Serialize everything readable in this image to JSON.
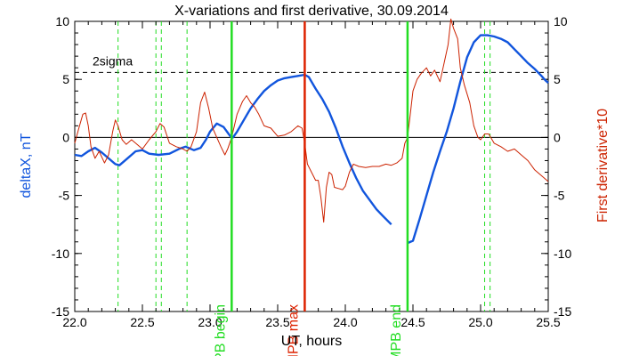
{
  "chart_data": {
    "type": "line",
    "title": "X-variations and first derivative, 30.09.2014",
    "xlabel": "UT, hours",
    "ylabel_left": "deltaX, nT",
    "ylabel_right": "First derivative*10",
    "xlim": [
      22.0,
      25.5
    ],
    "ylim": [
      -15,
      10
    ],
    "x_ticks": [
      "22.0",
      "22.5",
      "23.0",
      "23.5",
      "24.0",
      "24.5",
      "25.0",
      "25.5"
    ],
    "y_ticks_left": [
      "10",
      "5",
      "0",
      "-5",
      "-10",
      "-15"
    ],
    "y_ticks_right": [
      "10",
      "5",
      "0",
      "-5",
      "-10",
      "-15"
    ],
    "threshold": {
      "label": "2sigma",
      "value": 5.6
    },
    "zero_line": 0,
    "markers": [
      {
        "x": 23.16,
        "label": "MPB begin",
        "color": "#22dd22"
      },
      {
        "x": 23.7,
        "label": "MPB max",
        "color": "#dd2200"
      },
      {
        "x": 24.46,
        "label": "MPB end",
        "color": "#22dd22"
      }
    ],
    "dashed_markers": [
      22.32,
      22.6,
      22.64,
      22.83,
      25.03,
      25.07
    ],
    "series": [
      {
        "name": "deltaX, nT",
        "color": "#1155dd",
        "segments": [
          [
            [
              22.0,
              -1.5
            ],
            [
              22.05,
              -1.6
            ],
            [
              22.1,
              -1.2
            ],
            [
              22.15,
              -0.9
            ],
            [
              22.2,
              -1.3
            ],
            [
              22.25,
              -1.8
            ],
            [
              22.3,
              -2.3
            ],
            [
              22.33,
              -2.4
            ],
            [
              22.38,
              -1.9
            ],
            [
              22.45,
              -1.2
            ],
            [
              22.5,
              -1.1
            ],
            [
              22.55,
              -1.4
            ],
            [
              22.62,
              -1.5
            ],
            [
              22.7,
              -1.4
            ],
            [
              22.77,
              -1.0
            ],
            [
              22.82,
              -0.8
            ],
            [
              22.88,
              -1.1
            ],
            [
              22.93,
              -0.9
            ],
            [
              22.97,
              -0.2
            ],
            [
              23.0,
              0.5
            ],
            [
              23.05,
              1.2
            ],
            [
              23.1,
              0.9
            ],
            [
              23.15,
              0.1
            ],
            [
              23.17,
              0.0
            ],
            [
              23.2,
              0.5
            ],
            [
              23.25,
              1.5
            ],
            [
              23.3,
              2.5
            ],
            [
              23.35,
              3.3
            ],
            [
              23.4,
              4.0
            ],
            [
              23.45,
              4.5
            ],
            [
              23.5,
              4.9
            ],
            [
              23.55,
              5.1
            ],
            [
              23.6,
              5.2
            ],
            [
              23.65,
              5.3
            ],
            [
              23.7,
              5.4
            ],
            [
              23.73,
              5.2
            ],
            [
              23.78,
              4.2
            ],
            [
              23.83,
              3.3
            ],
            [
              23.88,
              2.2
            ],
            [
              23.93,
              0.8
            ],
            [
              23.98,
              -0.8
            ],
            [
              24.03,
              -2.2
            ],
            [
              24.08,
              -3.5
            ],
            [
              24.13,
              -4.6
            ],
            [
              24.18,
              -5.4
            ],
            [
              24.23,
              -6.2
            ],
            [
              24.28,
              -6.8
            ],
            [
              24.34,
              -7.5
            ]
          ],
          [
            [
              24.46,
              -9.1
            ],
            [
              24.5,
              -8.9
            ],
            [
              24.55,
              -7.0
            ],
            [
              24.6,
              -5.0
            ],
            [
              24.65,
              -3.0
            ],
            [
              24.7,
              -1.2
            ],
            [
              24.75,
              0.5
            ],
            [
              24.8,
              2.5
            ],
            [
              24.85,
              4.8
            ],
            [
              24.9,
              6.9
            ],
            [
              24.95,
              8.2
            ],
            [
              25.0,
              8.8
            ],
            [
              25.05,
              8.8
            ],
            [
              25.1,
              8.7
            ],
            [
              25.15,
              8.5
            ],
            [
              25.2,
              8.2
            ],
            [
              25.25,
              7.6
            ],
            [
              25.3,
              7.0
            ],
            [
              25.35,
              6.4
            ],
            [
              25.4,
              5.9
            ],
            [
              25.45,
              5.3
            ],
            [
              25.48,
              4.9
            ],
            [
              25.5,
              4.7
            ]
          ]
        ]
      },
      {
        "name": "First derivative*10",
        "color": "#cc2200",
        "segments": [
          [
            [
              22.0,
              -0.5
            ],
            [
              22.03,
              0.8
            ],
            [
              22.06,
              2.0
            ],
            [
              22.08,
              2.1
            ],
            [
              22.1,
              1.0
            ],
            [
              22.12,
              -0.8
            ],
            [
              22.15,
              -1.8
            ],
            [
              22.18,
              -1.2
            ],
            [
              22.22,
              -2.2
            ],
            [
              22.25,
              -1.5
            ],
            [
              22.28,
              0.5
            ],
            [
              22.3,
              1.5
            ],
            [
              22.32,
              1.0
            ],
            [
              22.35,
              -0.2
            ],
            [
              22.38,
              -0.6
            ],
            [
              22.42,
              -0.2
            ],
            [
              22.45,
              -0.5
            ],
            [
              22.5,
              -1.0
            ],
            [
              22.55,
              -0.2
            ],
            [
              22.6,
              0.5
            ],
            [
              22.63,
              1.2
            ],
            [
              22.66,
              0.9
            ],
            [
              22.7,
              -0.5
            ],
            [
              22.75,
              -0.8
            ],
            [
              22.8,
              -1.0
            ],
            [
              22.83,
              -1.2
            ],
            [
              22.86,
              -0.8
            ],
            [
              22.9,
              0.5
            ],
            [
              22.93,
              3.0
            ],
            [
              22.96,
              3.9
            ],
            [
              22.99,
              2.5
            ],
            [
              23.02,
              0.8
            ],
            [
              23.05,
              0.0
            ],
            [
              23.08,
              -0.8
            ],
            [
              23.11,
              -1.5
            ],
            [
              23.13,
              -1.0
            ],
            [
              23.16,
              0.0
            ],
            [
              23.2,
              2.0
            ],
            [
              23.24,
              3.1
            ],
            [
              23.27,
              3.6
            ],
            [
              23.3,
              3.0
            ],
            [
              23.33,
              2.6
            ],
            [
              23.36,
              2.0
            ],
            [
              23.4,
              1.0
            ],
            [
              23.45,
              0.8
            ],
            [
              23.5,
              0.1
            ],
            [
              23.55,
              0.2
            ],
            [
              23.6,
              0.5
            ],
            [
              23.65,
              1.0
            ],
            [
              23.68,
              0.8
            ],
            [
              23.7,
              -0.5
            ],
            [
              23.72,
              -2.3
            ],
            [
              23.75,
              -3.0
            ],
            [
              23.78,
              -3.7
            ],
            [
              23.8,
              -3.7
            ],
            [
              23.82,
              -5.2
            ],
            [
              23.84,
              -7.3
            ],
            [
              23.86,
              -4.3
            ],
            [
              23.88,
              -3.0
            ],
            [
              23.9,
              -3.2
            ],
            [
              23.92,
              -4.3
            ],
            [
              23.95,
              -4.4
            ],
            [
              23.98,
              -4.5
            ],
            [
              24.0,
              -4.2
            ],
            [
              24.03,
              -3.0
            ],
            [
              24.06,
              -2.3
            ],
            [
              24.1,
              -2.5
            ],
            [
              24.15,
              -2.6
            ],
            [
              24.2,
              -2.5
            ],
            [
              24.25,
              -2.5
            ],
            [
              24.3,
              -2.3
            ],
            [
              24.34,
              -2.4
            ],
            [
              24.38,
              -2.2
            ],
            [
              24.42,
              -1.8
            ],
            [
              24.44,
              -0.5
            ],
            [
              24.46,
              0.0
            ],
            [
              24.48,
              2.0
            ],
            [
              24.5,
              4.0
            ],
            [
              24.53,
              5.0
            ],
            [
              24.56,
              5.5
            ],
            [
              24.6,
              6.0
            ],
            [
              24.63,
              5.3
            ],
            [
              24.66,
              5.8
            ],
            [
              24.7,
              4.8
            ],
            [
              24.73,
              6.4
            ],
            [
              24.76,
              8.0
            ],
            [
              24.78,
              10.2
            ],
            [
              24.8,
              9.4
            ],
            [
              24.83,
              8.5
            ],
            [
              24.85,
              6.0
            ],
            [
              24.88,
              4.5
            ],
            [
              24.92,
              3.0
            ],
            [
              24.95,
              1.0
            ],
            [
              24.98,
              0.0
            ],
            [
              25.0,
              -0.2
            ],
            [
              25.03,
              0.3
            ],
            [
              25.06,
              0.3
            ],
            [
              25.1,
              -0.5
            ],
            [
              25.15,
              -0.8
            ],
            [
              25.2,
              -1.2
            ],
            [
              25.25,
              -1.0
            ],
            [
              25.3,
              -1.5
            ],
            [
              25.35,
              -2.0
            ],
            [
              25.4,
              -2.8
            ],
            [
              25.45,
              -3.3
            ],
            [
              25.5,
              -3.8
            ]
          ]
        ]
      }
    ]
  }
}
